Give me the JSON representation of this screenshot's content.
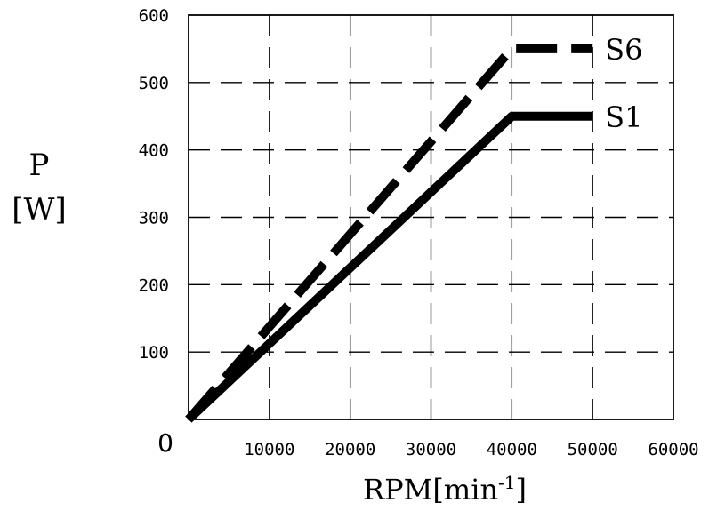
{
  "chart_data": {
    "type": "line",
    "xlabel": "RPM[min",
    "xlabel_superscript": "-1",
    "xlabel_close": "]",
    "ylabel_line1": "P",
    "ylabel_line2": "[W]",
    "origin_label": "0",
    "xlim": [
      0,
      60000
    ],
    "ylim": [
      0,
      600
    ],
    "x_ticks": [
      {
        "value": 10000,
        "label": "10000"
      },
      {
        "value": 20000,
        "label": "20000"
      },
      {
        "value": 30000,
        "label": "30000"
      },
      {
        "value": 40000,
        "label": "40000"
      },
      {
        "value": 50000,
        "label": "50000"
      },
      {
        "value": 60000,
        "label": "60000"
      }
    ],
    "y_ticks": [
      {
        "value": 100,
        "label": "100"
      },
      {
        "value": 200,
        "label": "200"
      },
      {
        "value": 300,
        "label": "300"
      },
      {
        "value": 400,
        "label": "400"
      },
      {
        "value": 500,
        "label": "500"
      },
      {
        "value": 600,
        "label": "600"
      }
    ],
    "grid": true,
    "series": [
      {
        "name": "S6",
        "style": "dashed",
        "color": "#000000",
        "points": [
          [
            0,
            0
          ],
          [
            40000,
            550
          ],
          [
            50000,
            550
          ]
        ]
      },
      {
        "name": "S1",
        "style": "solid",
        "color": "#000000",
        "points": [
          [
            0,
            0
          ],
          [
            40000,
            450
          ],
          [
            50000,
            450
          ]
        ]
      }
    ]
  }
}
